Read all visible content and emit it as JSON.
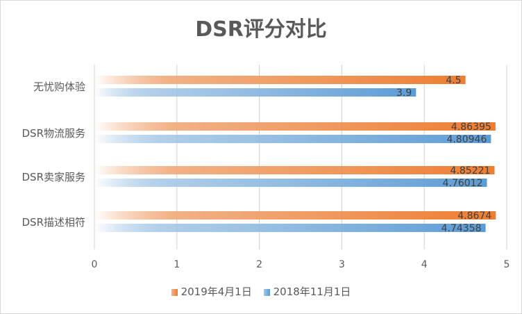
{
  "chart_data": {
    "type": "bar",
    "orientation": "horizontal",
    "title": "DSR评分对比",
    "categories": [
      "无忧购体验",
      "DSR物流服务",
      "DSR卖家服务",
      "DSR描述相符"
    ],
    "series": [
      {
        "name": "2019年4月1日",
        "color": "#ed7d31",
        "values": [
          4.5,
          4.86395,
          4.85221,
          4.8674
        ],
        "labels": [
          "4.5",
          "4.86395",
          "4.85221",
          "4.8674"
        ]
      },
      {
        "name": "2018年11月1日",
        "color": "#5b9bd5",
        "values": [
          3.9,
          4.80946,
          4.76012,
          4.74358
        ],
        "labels": [
          "3.9",
          "4.80946",
          "4.76012",
          "4.74358"
        ]
      }
    ],
    "xlim": [
      0,
      5
    ],
    "xticks": [
      "0",
      "1",
      "2",
      "3",
      "4",
      "5"
    ],
    "grid": true,
    "legend": "bottom",
    "fill": "gradient"
  }
}
